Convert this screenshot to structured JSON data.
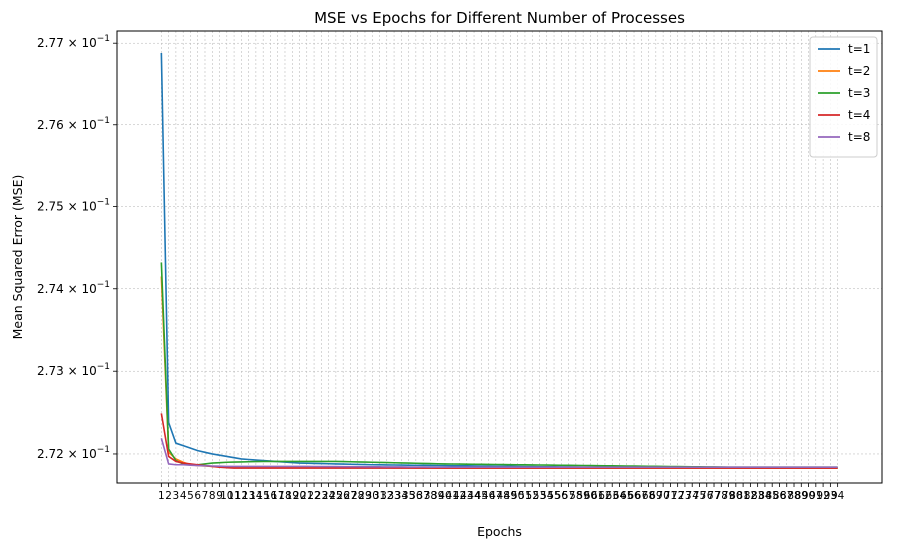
{
  "chart_data": {
    "type": "line",
    "title": "MSE vs Epochs for Different Number of Processes",
    "xlabel": "Epochs",
    "ylabel": "Mean Squared Error (MSE)",
    "yscale": "log",
    "grid": true,
    "grid_style": "dashed",
    "legend_position": "upper-right",
    "x_start": 1,
    "x_end": 94,
    "xlim": [
      -5.1,
      100.1
    ],
    "ylim": [
      0.27165,
      0.27715
    ],
    "y_ticks": [
      {
        "value": 0.272,
        "mantissa": "2.72",
        "exp": "−1"
      },
      {
        "value": 0.273,
        "mantissa": "2.73",
        "exp": "−1"
      },
      {
        "value": 0.274,
        "mantissa": "2.74",
        "exp": "−1"
      },
      {
        "value": 0.275,
        "mantissa": "2.75",
        "exp": "−1"
      },
      {
        "value": 0.276,
        "mantissa": "2.76",
        "exp": "−1"
      },
      {
        "value": 0.277,
        "mantissa": "2.77",
        "exp": "−1"
      }
    ],
    "y_tick_base": "× 10",
    "series": [
      {
        "name": "t=1",
        "color": "#1f77b4",
        "anchors": [
          [
            1,
            0.27688
          ],
          [
            2,
            0.27238
          ],
          [
            3,
            0.27213
          ],
          [
            4,
            0.2721
          ],
          [
            5,
            0.27207
          ],
          [
            6,
            0.27204
          ],
          [
            7,
            0.27202
          ],
          [
            8,
            0.272
          ],
          [
            10,
            0.27197
          ],
          [
            12,
            0.27194
          ],
          [
            15,
            0.27192
          ],
          [
            20,
            0.27189
          ],
          [
            25,
            0.27188
          ],
          [
            30,
            0.27187
          ],
          [
            40,
            0.27186
          ],
          [
            50,
            0.27185
          ],
          [
            60,
            0.27184
          ],
          [
            70,
            0.27184
          ],
          [
            80,
            0.27183
          ],
          [
            94,
            0.27183
          ]
        ]
      },
      {
        "name": "t=2",
        "color": "#ff7f0e",
        "anchors": [
          [
            1,
            0.27415
          ],
          [
            2,
            0.27202
          ],
          [
            3,
            0.27194
          ],
          [
            4,
            0.2719
          ],
          [
            5,
            0.27187
          ],
          [
            6,
            0.27186
          ],
          [
            8,
            0.27185
          ],
          [
            10,
            0.27184
          ],
          [
            20,
            0.27184
          ],
          [
            40,
            0.27183
          ],
          [
            94,
            0.27183
          ]
        ]
      },
      {
        "name": "t=3",
        "color": "#2ca02c",
        "anchors": [
          [
            1,
            0.27432
          ],
          [
            2,
            0.27206
          ],
          [
            3,
            0.27192
          ],
          [
            4,
            0.27188
          ],
          [
            5,
            0.27187
          ],
          [
            6,
            0.27187
          ],
          [
            8,
            0.27189
          ],
          [
            10,
            0.2719
          ],
          [
            15,
            0.27191
          ],
          [
            20,
            0.27191
          ],
          [
            25,
            0.27191
          ],
          [
            30,
            0.2719
          ],
          [
            40,
            0.27188
          ],
          [
            50,
            0.27187
          ],
          [
            60,
            0.27186
          ],
          [
            70,
            0.27185
          ],
          [
            80,
            0.27184
          ],
          [
            94,
            0.27184
          ]
        ]
      },
      {
        "name": "t=4",
        "color": "#d62728",
        "anchors": [
          [
            1,
            0.27249
          ],
          [
            2,
            0.27197
          ],
          [
            3,
            0.27191
          ],
          [
            4,
            0.27189
          ],
          [
            5,
            0.27188
          ],
          [
            7,
            0.27186
          ],
          [
            9,
            0.27184
          ],
          [
            11,
            0.27183
          ],
          [
            20,
            0.27183
          ],
          [
            94,
            0.27183
          ]
        ]
      },
      {
        "name": "t=8",
        "color": "#9467bd",
        "anchors": [
          [
            1,
            0.27219
          ],
          [
            2,
            0.27188
          ],
          [
            3,
            0.27187
          ],
          [
            4,
            0.27187
          ],
          [
            6,
            0.27186
          ],
          [
            10,
            0.27185
          ],
          [
            20,
            0.27185
          ],
          [
            40,
            0.27184
          ],
          [
            94,
            0.27184
          ]
        ]
      }
    ]
  }
}
